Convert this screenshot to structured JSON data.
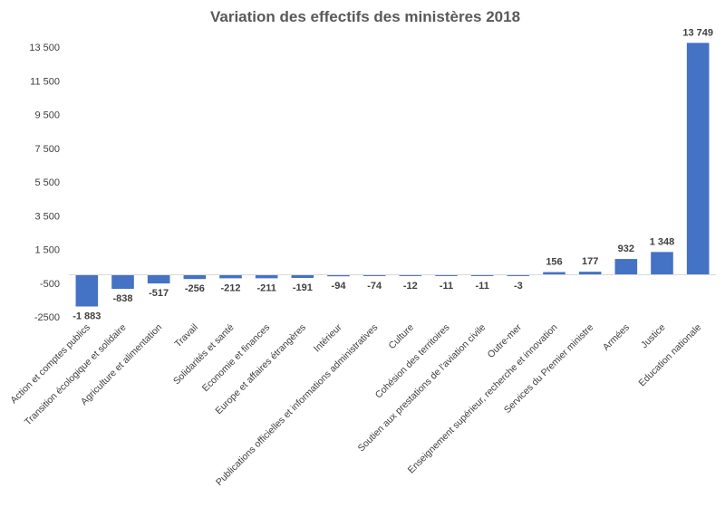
{
  "chart_data": {
    "type": "bar",
    "title": "Variation des effectifs des ministères 2018",
    "xlabel": "",
    "ylabel": "",
    "ylim": [
      -2500,
      15000
    ],
    "yticks": [
      -2500,
      -500,
      1500,
      3500,
      5500,
      7500,
      9500,
      11500,
      13500
    ],
    "ytick_labels": [
      "-2500",
      "-500",
      "1 500",
      "3 500",
      "5 500",
      "7 500",
      "9 500",
      "11 500",
      "13 500"
    ],
    "grid": false,
    "legend": "none",
    "bar_color": "#4472C4",
    "categories": [
      "Action et comptes publics",
      "Transition écologique et solidaire",
      "Agriculture et alimentation",
      "Travail",
      "Solidarités et santé",
      "Economie et finances",
      "Europe et affaires étrangères",
      "Intérieur",
      "Publications officielles et informations administratives",
      "Culture",
      "Cohésion des territoires",
      "Soutien aux prestations de l'aviation civile",
      "Outre-mer",
      "Enseignement supérieur, recherche et innovation",
      "Services du Premier ministre",
      "Armées",
      "Justice",
      "Education nationale"
    ],
    "values": [
      -1883,
      -838,
      -517,
      -256,
      -212,
      -211,
      -191,
      -94,
      -74,
      -12,
      -11,
      -11,
      -3,
      156,
      177,
      932,
      1348,
      13749
    ],
    "data_labels": [
      "-1 883",
      "-838",
      "-517",
      "-256",
      "-212",
      "-211",
      "-191",
      "-94",
      "-74",
      "-12",
      "-11",
      "-11",
      "-3",
      "156",
      "177",
      "932",
      "1 348",
      "13 749"
    ]
  }
}
